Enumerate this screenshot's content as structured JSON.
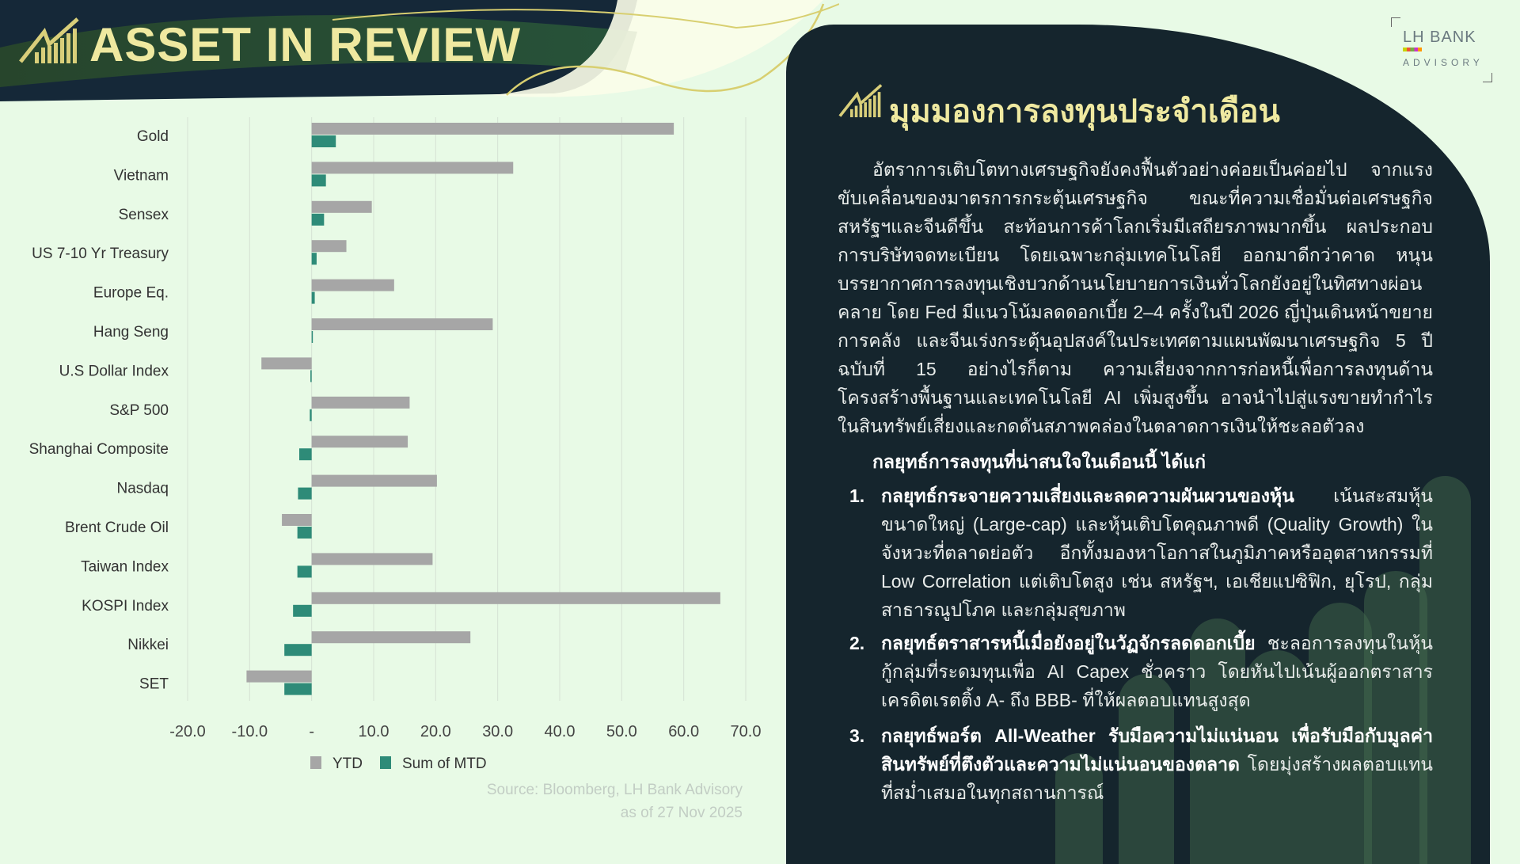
{
  "header": {
    "title": "ASSET IN REVIEW"
  },
  "brand": {
    "line1": "LH BANK",
    "line2": "ADVISORY"
  },
  "right_panel": {
    "title": "มุมมองการลงทุนประจำเดือน",
    "paragraph": "อัตราการเติบโตทางเศรษฐกิจยังคงฟื้นตัวอย่างค่อยเป็นค่อยไป จากแรงขับเคลื่อนของมาตรการกระตุ้นเศรษฐกิจ ขณะที่ความเชื่อมั่นต่อเศรษฐกิจสหรัฐฯและจีนดีขึ้น สะท้อนการค้าโลกเริ่มมีเสถียรภาพมากขึ้น ผลประกอบการบริษัทจดทะเบียน โดยเฉพาะกลุ่มเทคโนโลยี ออกมาดีกว่าคาด หนุนบรรยากาศการลงทุนเชิงบวกด้านนโยบายการเงินทั่วโลกยังอยู่ในทิศทางผ่อนคลาย โดย Fed  มีแนวโน้มลดดอกเบี้ย 2–4 ครั้งในปี 2026 ญี่ปุ่นเดินหน้าขยายการคลัง และจีนเร่งกระตุ้นอุปสงค์ในประเทศตามแผนพัฒนาเศรษฐกิจ 5 ปี ฉบับที่ 15 อย่างไรก็ตาม ความเสี่ยงจากการก่อหนี้เพื่อการลงทุนด้านโครงสร้างพื้นฐานและเทคโนโลยี AI   เพิ่มสูงขึ้น อาจนำไปสู่แรงขายทำกำไรในสินทรัพย์เสี่ยงและกดดันสภาพคล่องในตลาดการเงินให้ชะลอตัวลง",
    "subheading": "กลยุทธ์การลงทุนที่น่าสนใจในเดือนนี้ ได้แก่",
    "strategies": [
      {
        "num": "1.",
        "bold": "กลยุทธ์กระจายความเสี่ยงและลดความผันผวนของหุ้น",
        "text": " เน้นสะสมหุ้นขนาดใหญ่ (Large-cap) และหุ้นเติบโตคุณภาพดี (Quality Growth) ในจังหวะที่ตลาดย่อตัว อีกทั้งมองหาโอกาสในภูมิภาคหรืออุตสาหกรรมที่ Low Correlation แต่เติบโตสูง เช่น สหรัฐฯ, เอเชียแปซิฟิก, ยุโรป, กลุ่มสาธารณูปโภค และกลุ่มสุขภาพ"
      },
      {
        "num": "2.",
        "bold": "กลยุทธ์ตราสารหนี้เมื่อยังอยู่ในวัฏจักรลดดอกเบี้ย",
        "text": " ชะลอการลงทุนในหุ้นกู้กลุ่มที่ระดมทุนเพื่อ AI Capex ชั่วคราว โดยหันไปเน้นผู้ออกตราสารเครดิตเรตติ้ง A- ถึง BBB- ที่ให้ผลตอบแทนสูงสุด"
      },
      {
        "num": "3.",
        "bold": "กลยุทธ์พอร์ต All-Weather รับมือความไม่แน่นอน เพื่อรับมือกับมูลค่าสินทรัพย์ที่ตึงตัวและความไม่แน่นอนของตลาด",
        "text": " โดยมุ่งสร้างผลตอบแทนที่สม่ำเสมอในทุกสถานการณ์"
      }
    ]
  },
  "source": {
    "line1": "Source: Bloomberg, LH Bank Advisory",
    "line2": "as of 27 Nov 2025"
  },
  "colors": {
    "ytd": "#a6a6a6",
    "mtd": "#2e8b78",
    "panel": "#15252d",
    "title": "#efe9a0"
  },
  "chart_data": {
    "type": "bar",
    "orientation": "horizontal",
    "categories": [
      "Gold",
      "Vietnam",
      "Sensex",
      "US 7-10 Yr Treasury",
      "Europe Eq.",
      "Hang Seng",
      "U.S Dollar Index",
      "S&P 500",
      "Shanghai Composite",
      "Nasdaq",
      "Brent Crude Oil",
      "Taiwan Index",
      "KOSPI Index",
      "Nikkei",
      "SET"
    ],
    "series": [
      {
        "name": "YTD",
        "values": [
          58.4,
          32.5,
          9.7,
          5.6,
          13.3,
          29.2,
          -8.1,
          15.8,
          15.5,
          20.2,
          -4.8,
          19.5,
          65.9,
          25.6,
          -10.5
        ]
      },
      {
        "name": "Sum of MTD",
        "values": [
          3.9,
          2.3,
          2.0,
          0.8,
          0.5,
          0.1,
          -0.2,
          -0.3,
          -2.0,
          -2.2,
          -2.3,
          -2.3,
          -3.0,
          -4.4,
          -4.4
        ]
      }
    ],
    "xlim": [
      -20,
      70
    ],
    "ticks": [
      "-20.0",
      "-10.0",
      "-",
      "10.0",
      "20.0",
      "30.0",
      "40.0",
      "50.0",
      "60.0",
      "70.0"
    ],
    "tick_values": [
      -20,
      -10,
      0,
      10,
      20,
      30,
      40,
      50,
      60,
      70
    ],
    "grid": true,
    "legend": "bottom"
  }
}
